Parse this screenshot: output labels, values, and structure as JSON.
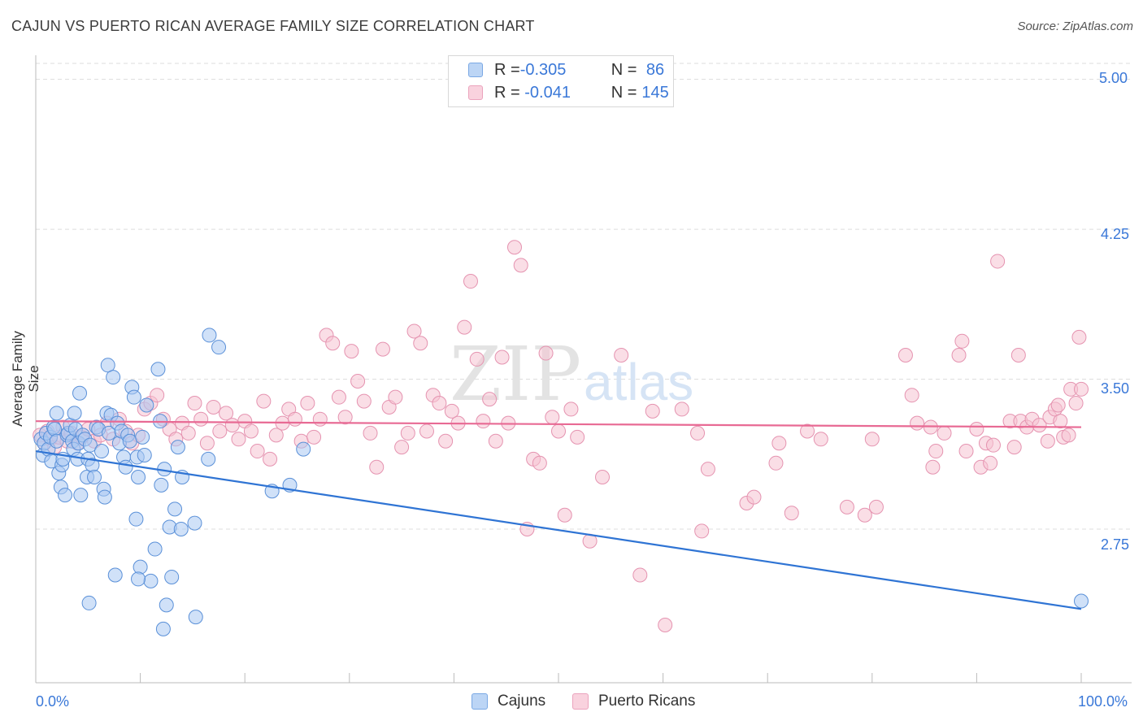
{
  "title": "CAJUN VS PUERTO RICAN AVERAGE FAMILY SIZE CORRELATION CHART",
  "source": "Source: ZipAtlas.com",
  "watermark": {
    "zip": "ZIP",
    "atlas": "atlas"
  },
  "legend": {
    "rows": [
      {
        "r_label": "R = ",
        "r_value": "-0.305",
        "n_label": "N = ",
        "n_value": " 86",
        "color": "#8fb6ec"
      },
      {
        "r_label": "R = ",
        "r_value": " -0.041",
        "n_label": "N = ",
        "n_value": "145",
        "color": "#f2a8c0"
      }
    ]
  },
  "bottom_legend": {
    "cajuns": "Cajuns",
    "puerto_ricans": "Puerto Ricans"
  },
  "colors": {
    "cajun_fill": "#a9c8f2",
    "cajun_stroke": "#5a90d8",
    "cajun_line": "#2f74d4",
    "pr_fill": "#f6c2d2",
    "pr_stroke": "#e593b0",
    "pr_line": "#e86a94",
    "axis_text": "#3a78d8",
    "grid": "#dddddd"
  },
  "chart_data": {
    "type": "scatter",
    "title": "CAJUN VS PUERTO RICAN AVERAGE FAMILY SIZE CORRELATION CHART",
    "xlabel": "",
    "ylabel": "Average Family Size",
    "x_tick_labels": [
      "0.0%",
      "100.0%"
    ],
    "y_tick_labels": [
      "5.00",
      "4.25",
      "3.50",
      "2.75"
    ],
    "xlim": [
      0,
      100
    ],
    "ylim": [
      2.03,
      5.08
    ],
    "grid": true,
    "legend_position": "top-center",
    "series": [
      {
        "name": "Cajuns",
        "R": -0.305,
        "N": 86,
        "trend": {
          "x": [
            0,
            100
          ],
          "y": [
            3.14,
            2.35
          ]
        },
        "points": [
          [
            0.5,
            3.2
          ],
          [
            0.7,
            3.12
          ],
          [
            0.8,
            3.18
          ],
          [
            1.0,
            3.23
          ],
          [
            1.2,
            3.15
          ],
          [
            1.4,
            3.21
          ],
          [
            1.5,
            3.09
          ],
          [
            1.7,
            3.26
          ],
          [
            1.8,
            3.25
          ],
          [
            2.0,
            3.19
          ],
          [
            2.0,
            3.33
          ],
          [
            2.2,
            3.03
          ],
          [
            2.4,
            2.96
          ],
          [
            2.5,
            3.07
          ],
          [
            2.6,
            3.1
          ],
          [
            2.8,
            2.92
          ],
          [
            3.0,
            3.22
          ],
          [
            3.1,
            3.23
          ],
          [
            3.3,
            3.27
          ],
          [
            3.5,
            3.19
          ],
          [
            3.6,
            3.15
          ],
          [
            3.7,
            3.33
          ],
          [
            3.8,
            3.25
          ],
          [
            4.0,
            3.1
          ],
          [
            4.1,
            3.18
          ],
          [
            4.2,
            3.43
          ],
          [
            4.3,
            2.92
          ],
          [
            4.5,
            3.22
          ],
          [
            4.7,
            3.2
          ],
          [
            4.9,
            3.01
          ],
          [
            5.0,
            3.1
          ],
          [
            5.1,
            2.38
          ],
          [
            5.2,
            3.17
          ],
          [
            5.4,
            3.07
          ],
          [
            5.6,
            3.01
          ],
          [
            5.8,
            3.26
          ],
          [
            6.0,
            3.25
          ],
          [
            6.3,
            3.14
          ],
          [
            6.5,
            2.95
          ],
          [
            6.6,
            2.91
          ],
          [
            6.8,
            3.33
          ],
          [
            6.9,
            3.57
          ],
          [
            7.0,
            3.23
          ],
          [
            7.2,
            3.32
          ],
          [
            7.4,
            3.51
          ],
          [
            7.6,
            2.52
          ],
          [
            7.8,
            3.28
          ],
          [
            8.0,
            3.18
          ],
          [
            8.2,
            3.24
          ],
          [
            8.4,
            3.11
          ],
          [
            8.6,
            3.06
          ],
          [
            8.8,
            3.22
          ],
          [
            9.0,
            3.19
          ],
          [
            9.2,
            3.46
          ],
          [
            9.4,
            3.41
          ],
          [
            9.6,
            2.8
          ],
          [
            9.7,
            3.11
          ],
          [
            9.8,
            3.01
          ],
          [
            10.0,
            2.56
          ],
          [
            10.2,
            3.21
          ],
          [
            10.4,
            3.12
          ],
          [
            10.6,
            3.37
          ],
          [
            11.0,
            2.49
          ],
          [
            11.4,
            2.65
          ],
          [
            11.7,
            3.55
          ],
          [
            11.9,
            3.29
          ],
          [
            12.0,
            2.97
          ],
          [
            12.3,
            3.05
          ],
          [
            12.5,
            2.37
          ],
          [
            12.8,
            2.76
          ],
          [
            13.0,
            2.51
          ],
          [
            13.3,
            2.85
          ],
          [
            13.6,
            3.16
          ],
          [
            13.9,
            2.75
          ],
          [
            14.0,
            3.01
          ],
          [
            15.3,
            2.31
          ],
          [
            15.2,
            2.78
          ],
          [
            16.5,
            3.1
          ],
          [
            16.6,
            3.72
          ],
          [
            17.5,
            3.66
          ],
          [
            22.6,
            2.94
          ],
          [
            24.3,
            2.97
          ],
          [
            25.6,
            3.15
          ],
          [
            12.2,
            2.25
          ],
          [
            9.8,
            2.5
          ],
          [
            100,
            2.39
          ]
        ]
      },
      {
        "name": "Puerto Ricans",
        "R": -0.041,
        "N": 145,
        "trend": {
          "x": [
            0,
            100
          ],
          "y": [
            3.29,
            3.26
          ]
        },
        "points": [
          [
            0.4,
            3.22
          ],
          [
            0.8,
            3.18
          ],
          [
            1.1,
            3.24
          ],
          [
            1.4,
            3.2
          ],
          [
            1.8,
            3.16
          ],
          [
            2.2,
            3.21
          ],
          [
            2.6,
            3.26
          ],
          [
            3.0,
            3.19
          ],
          [
            3.4,
            3.23
          ],
          [
            4.0,
            3.18
          ],
          [
            4.4,
            3.21
          ],
          [
            5.0,
            3.25
          ],
          [
            5.6,
            3.19
          ],
          [
            6.2,
            3.22
          ],
          [
            6.8,
            3.28
          ],
          [
            7.4,
            3.2
          ],
          [
            8.0,
            3.3
          ],
          [
            8.6,
            3.24
          ],
          [
            9.2,
            3.18
          ],
          [
            9.8,
            3.22
          ],
          [
            10.4,
            3.35
          ],
          [
            11.0,
            3.38
          ],
          [
            11.6,
            3.42
          ],
          [
            12.2,
            3.3
          ],
          [
            12.8,
            3.25
          ],
          [
            13.4,
            3.2
          ],
          [
            14.0,
            3.28
          ],
          [
            14.6,
            3.23
          ],
          [
            15.2,
            3.38
          ],
          [
            15.8,
            3.3
          ],
          [
            16.4,
            3.18
          ],
          [
            17.0,
            3.36
          ],
          [
            17.6,
            3.24
          ],
          [
            18.2,
            3.33
          ],
          [
            18.8,
            3.27
          ],
          [
            19.4,
            3.2
          ],
          [
            20.0,
            3.29
          ],
          [
            20.6,
            3.24
          ],
          [
            21.2,
            3.14
          ],
          [
            21.8,
            3.39
          ],
          [
            22.4,
            3.1
          ],
          [
            23.0,
            3.22
          ],
          [
            23.6,
            3.28
          ],
          [
            24.2,
            3.35
          ],
          [
            24.8,
            3.3
          ],
          [
            25.4,
            3.19
          ],
          [
            26.0,
            3.38
          ],
          [
            26.6,
            3.21
          ],
          [
            27.2,
            3.3
          ],
          [
            27.8,
            3.72
          ],
          [
            28.4,
            3.68
          ],
          [
            29.0,
            3.41
          ],
          [
            29.6,
            3.31
          ],
          [
            30.2,
            3.64
          ],
          [
            30.8,
            3.49
          ],
          [
            31.4,
            3.39
          ],
          [
            32.0,
            3.23
          ],
          [
            32.6,
            3.06
          ],
          [
            33.2,
            3.65
          ],
          [
            33.8,
            3.36
          ],
          [
            34.4,
            3.41
          ],
          [
            35.0,
            3.16
          ],
          [
            35.6,
            3.23
          ],
          [
            36.2,
            3.74
          ],
          [
            36.8,
            3.68
          ],
          [
            37.4,
            3.24
          ],
          [
            38.0,
            3.42
          ],
          [
            38.6,
            3.38
          ],
          [
            39.2,
            3.19
          ],
          [
            39.8,
            3.34
          ],
          [
            40.4,
            3.28
          ],
          [
            41.0,
            3.76
          ],
          [
            41.6,
            3.99
          ],
          [
            42.2,
            3.6
          ],
          [
            42.8,
            3.29
          ],
          [
            43.4,
            3.4
          ],
          [
            44.0,
            3.19
          ],
          [
            44.6,
            3.61
          ],
          [
            45.2,
            3.28
          ],
          [
            45.8,
            4.16
          ],
          [
            46.4,
            4.07
          ],
          [
            47.0,
            2.75
          ],
          [
            47.6,
            3.1
          ],
          [
            48.2,
            3.08
          ],
          [
            48.8,
            3.63
          ],
          [
            49.4,
            3.31
          ],
          [
            50.0,
            3.24
          ],
          [
            50.6,
            2.82
          ],
          [
            51.2,
            3.35
          ],
          [
            51.8,
            3.21
          ],
          [
            53.0,
            2.69
          ],
          [
            54.2,
            3.01
          ],
          [
            56.0,
            3.62
          ],
          [
            57.8,
            2.52
          ],
          [
            59.0,
            3.34
          ],
          [
            60.2,
            2.27
          ],
          [
            61.8,
            3.35
          ],
          [
            63.3,
            3.23
          ],
          [
            63.7,
            2.74
          ],
          [
            64.3,
            3.05
          ],
          [
            68.0,
            2.88
          ],
          [
            68.7,
            2.91
          ],
          [
            70.8,
            3.08
          ],
          [
            71.1,
            3.18
          ],
          [
            72.3,
            2.83
          ],
          [
            73.8,
            3.24
          ],
          [
            75.1,
            3.2
          ],
          [
            77.6,
            2.86
          ],
          [
            79.3,
            2.82
          ],
          [
            80.4,
            2.86
          ],
          [
            83.2,
            3.62
          ],
          [
            83.8,
            3.42
          ],
          [
            84.3,
            3.28
          ],
          [
            85.8,
            3.06
          ],
          [
            86.1,
            3.14
          ],
          [
            86.9,
            3.23
          ],
          [
            88.3,
            3.62
          ],
          [
            88.6,
            3.69
          ],
          [
            89.0,
            3.14
          ],
          [
            90.4,
            3.06
          ],
          [
            90.9,
            3.18
          ],
          [
            91.3,
            3.08
          ],
          [
            91.6,
            3.17
          ],
          [
            92.0,
            4.09
          ],
          [
            93.2,
            3.29
          ],
          [
            94.0,
            3.62
          ],
          [
            94.2,
            3.29
          ],
          [
            94.8,
            3.26
          ],
          [
            95.3,
            3.3
          ],
          [
            96.0,
            3.27
          ],
          [
            96.8,
            3.19
          ],
          [
            97.0,
            3.31
          ],
          [
            97.5,
            3.35
          ],
          [
            98.0,
            3.29
          ],
          [
            98.3,
            3.21
          ],
          [
            99.0,
            3.45
          ],
          [
            99.5,
            3.38
          ],
          [
            100.0,
            3.45
          ],
          [
            99.8,
            3.71
          ],
          [
            98.8,
            3.22
          ],
          [
            97.8,
            3.37
          ],
          [
            93.6,
            3.16
          ],
          [
            90.0,
            3.25
          ],
          [
            85.6,
            3.26
          ],
          [
            80.0,
            3.2
          ]
        ]
      }
    ]
  }
}
